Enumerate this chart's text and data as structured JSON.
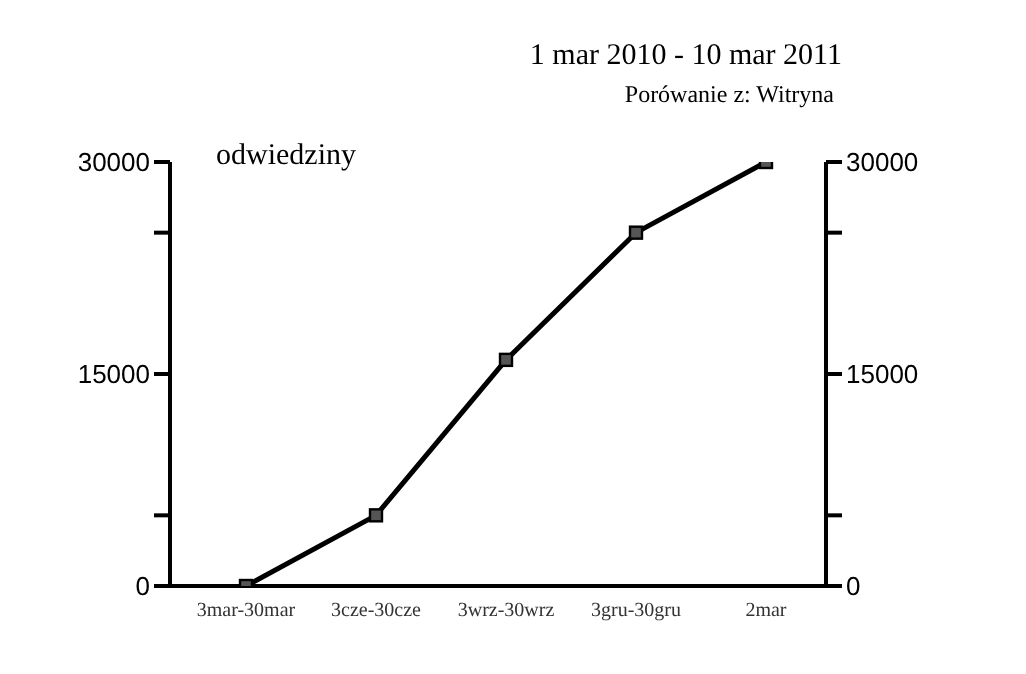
{
  "chart_data": {
    "type": "line",
    "title": "1 mar 2010 - 10 mar 2011",
    "subtitle": "Porówanie z: Witryna",
    "categories": [
      "3mar-30mar",
      "3cze-30cze",
      "3wrz-30wrz",
      "3gru-30gru",
      "2mar"
    ],
    "series": [
      {
        "name": "odwiedziny",
        "color": "#000000",
        "values": [
          0,
          5000,
          16000,
          25000,
          30000
        ]
      }
    ],
    "ylim": [
      0,
      30000
    ],
    "yticks": [
      0,
      {
        "value": 5000,
        "label": null
      },
      15000,
      {
        "value": 25000,
        "label": null
      },
      30000
    ],
    "y2lim": [
      0,
      30000
    ],
    "y2ticks": [
      0,
      {
        "value": 5000,
        "label": null
      },
      15000,
      {
        "value": 25000,
        "label": null
      },
      30000
    ],
    "legend": "top left",
    "grid": false,
    "marker": "square",
    "line_style": "solid"
  }
}
